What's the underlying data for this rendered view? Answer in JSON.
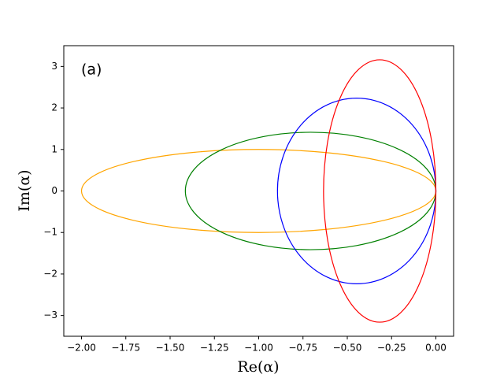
{
  "chart_data": {
    "type": "ellipse",
    "annotation": "(a)",
    "xlabel": "Re(α)",
    "ylabel": "Im(α)",
    "series": [
      {
        "color": "orange",
        "cx": -1.0,
        "cy": 0,
        "rx": 1.0,
        "ry": 1.0
      },
      {
        "color": "green",
        "cx": -0.707,
        "cy": 0,
        "rx": 0.707,
        "ry": 1.414
      },
      {
        "color": "blue",
        "cx": -0.447,
        "cy": 0,
        "rx": 0.447,
        "ry": 2.236
      },
      {
        "color": "red",
        "cx": -0.317,
        "cy": 0,
        "rx": 0.317,
        "ry": 3.16
      }
    ],
    "xlim": [
      -2.1,
      0.1
    ],
    "ylim": [
      -3.5,
      3.5
    ],
    "xticks": [
      {
        "value": -2,
        "label": "−2.00"
      },
      {
        "value": -1.75,
        "label": "−1.75"
      },
      {
        "value": -1.5,
        "label": "−1.50"
      },
      {
        "value": -1.25,
        "label": "−1.25"
      },
      {
        "value": -1,
        "label": "−1.00"
      },
      {
        "value": -0.75,
        "label": "−0.75"
      },
      {
        "value": -0.5,
        "label": "−0.50"
      },
      {
        "value": -0.25,
        "label": "−0.25"
      },
      {
        "value": 0,
        "label": "0.00"
      }
    ],
    "yticks": [
      {
        "value": -3,
        "label": "−3"
      },
      {
        "value": -2,
        "label": "−2"
      },
      {
        "value": -1,
        "label": "−1"
      },
      0,
      1,
      2,
      3
    ]
  }
}
